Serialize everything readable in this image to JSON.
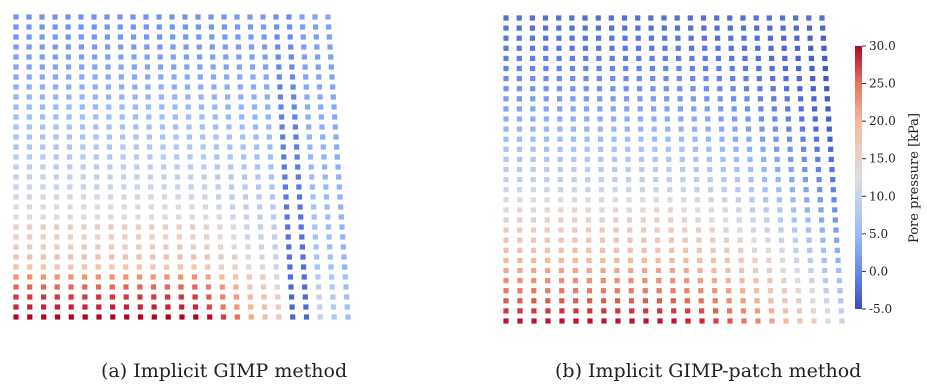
{
  "captions": {
    "a": "(a) Implicit GIMP method",
    "b": "(b) Implicit GIMP-patch method"
  },
  "colorbar": {
    "label": "Pore pressure [kPa]",
    "ticks": [
      "30.0",
      "25.0",
      "20.0",
      "15.0",
      "10.0",
      "5.0",
      "0.0",
      "-5.0"
    ],
    "min": -5.0,
    "max": 30.0,
    "colormap": "coolwarm",
    "colors": {
      "low": "#3b4cc0",
      "mid": "#dddddd",
      "high": "#b40426"
    }
  },
  "panels": [
    {
      "id": "a",
      "method": "Implicit GIMP",
      "rows": 31,
      "cols": 25
    },
    {
      "id": "b",
      "method": "Implicit GIMP-patch",
      "rows": 31,
      "cols": 25
    }
  ]
}
